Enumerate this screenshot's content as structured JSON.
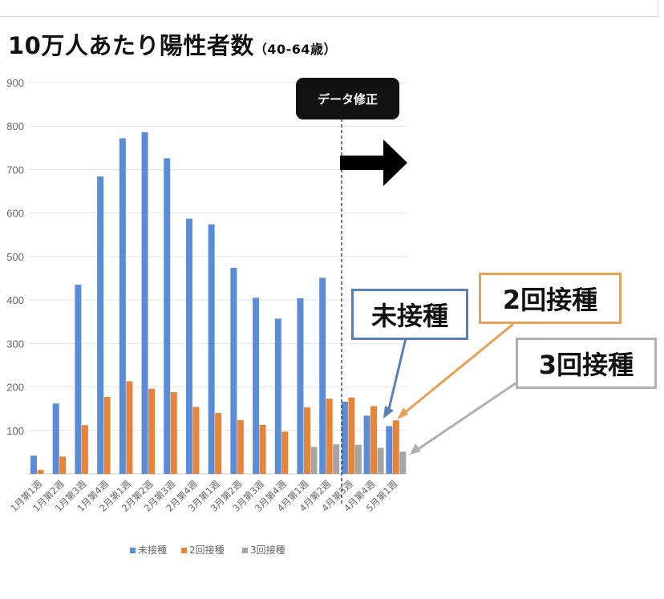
{
  "title": "10万人あたり陽性者数",
  "title_sub": "（40-64歳）",
  "annotation_label": "データ修正",
  "callouts": {
    "unvaccinated": "未接種",
    "two_dose": "2回接種",
    "three_dose": "3回接種"
  },
  "colors": {
    "unvaccinated": "#5b8dd6",
    "two_dose": "#e8833a",
    "three_dose": "#a5a5a5"
  },
  "chart_data": {
    "type": "bar",
    "categories": [
      "1月第1週",
      "1月第2週",
      "1月第3週",
      "1月第4週",
      "2月第1週",
      "2月第2週",
      "2月第3週",
      "2月第4週",
      "3月第1週",
      "3月第2週",
      "3月第3週",
      "3月第4週",
      "4月第1週",
      "4月第2週",
      "4月第3週",
      "4月第4週",
      "5月第1週"
    ],
    "series": [
      {
        "name": "未接種",
        "values": [
          42,
          162,
          435,
          684,
          772,
          786,
          726,
          587,
          574,
          474,
          405,
          357,
          404,
          451,
          166,
          134,
          110
        ]
      },
      {
        "name": "2回接種",
        "values": [
          9,
          40,
          112,
          177,
          213,
          196,
          188,
          154,
          140,
          124,
          113,
          97,
          153,
          173,
          176,
          156,
          123
        ]
      },
      {
        "name": "3回接種",
        "values": [
          0,
          0,
          0,
          0,
          0,
          0,
          0,
          0,
          0,
          0,
          0,
          0,
          62,
          68,
          67,
          60,
          51
        ]
      }
    ],
    "ylim": [
      0,
      900
    ],
    "yticks": [
      "900",
      "800",
      "700",
      "600",
      "500",
      "400",
      "300",
      "200",
      "100",
      ""
    ],
    "grid": true,
    "legend": "bottom",
    "data_correction_after_index": 13
  }
}
